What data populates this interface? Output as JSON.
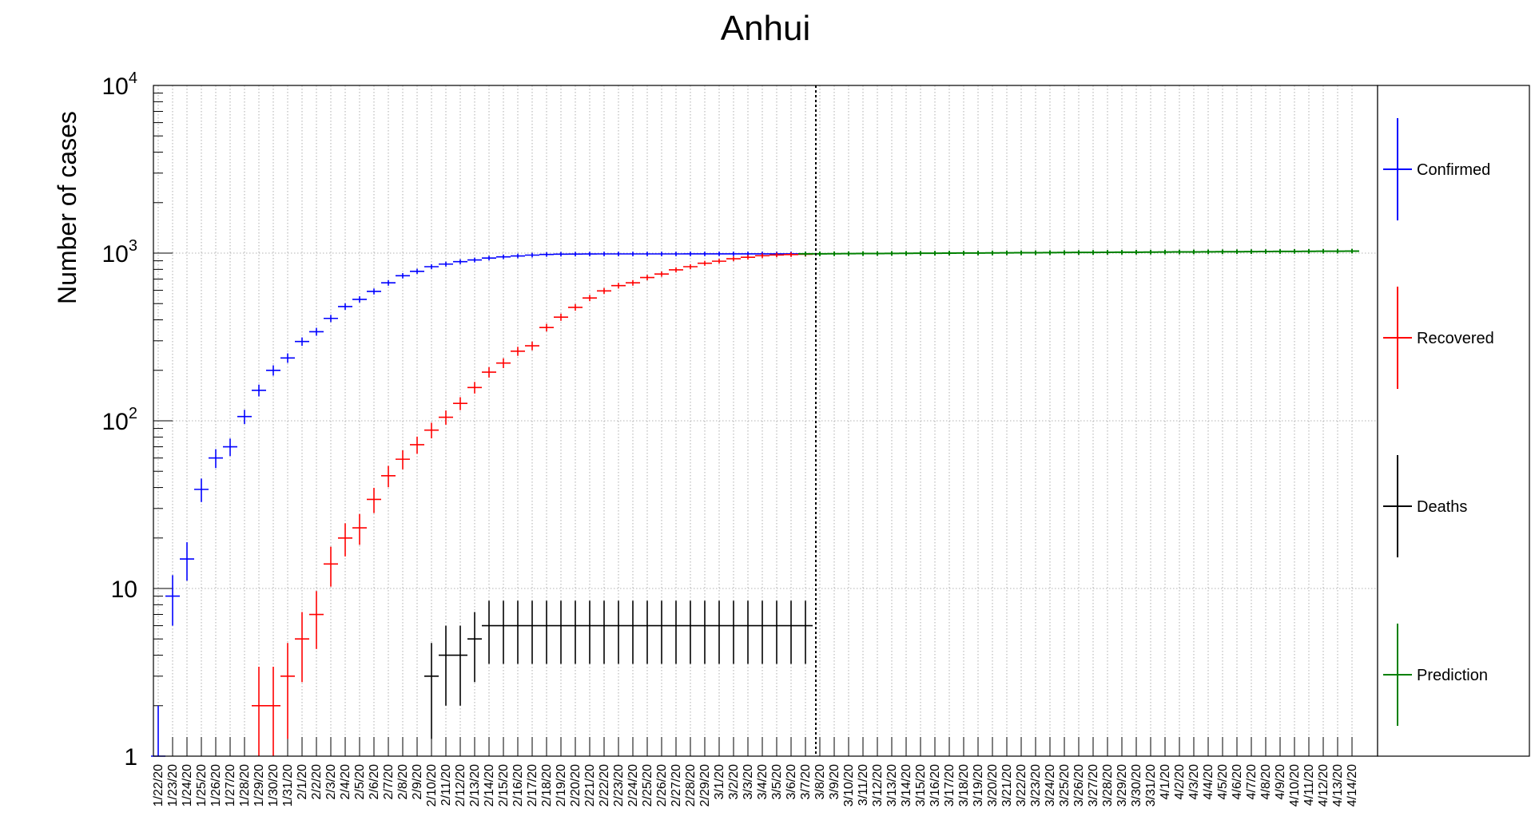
{
  "chart_data": {
    "type": "scatter",
    "title": "Anhui",
    "xlabel": "",
    "ylabel": "Number of cases",
    "yscale": "log",
    "ylim": [
      1,
      10000
    ],
    "y_tick_labels": [
      {
        "value": 1,
        "base": "1",
        "exp": ""
      },
      {
        "value": 10,
        "base": "10",
        "exp": ""
      },
      {
        "value": 100,
        "base": "10",
        "exp": "2"
      },
      {
        "value": 1000,
        "base": "10",
        "exp": "3"
      },
      {
        "value": 10000,
        "base": "10",
        "exp": "4"
      }
    ],
    "grid": true,
    "legend_position": "right",
    "split_date": "3/7/20",
    "categories": [
      "1/22/20",
      "1/23/20",
      "1/24/20",
      "1/25/20",
      "1/26/20",
      "1/27/20",
      "1/28/20",
      "1/29/20",
      "1/30/20",
      "1/31/20",
      "2/1/20",
      "2/2/20",
      "2/3/20",
      "2/4/20",
      "2/5/20",
      "2/6/20",
      "2/7/20",
      "2/8/20",
      "2/9/20",
      "2/10/20",
      "2/11/20",
      "2/12/20",
      "2/13/20",
      "2/14/20",
      "2/15/20",
      "2/16/20",
      "2/17/20",
      "2/18/20",
      "2/19/20",
      "2/20/20",
      "2/21/20",
      "2/22/20",
      "2/23/20",
      "2/24/20",
      "2/25/20",
      "2/26/20",
      "2/27/20",
      "2/28/20",
      "2/29/20",
      "3/1/20",
      "3/2/20",
      "3/3/20",
      "3/4/20",
      "3/5/20",
      "3/6/20",
      "3/7/20",
      "3/8/20",
      "3/9/20",
      "3/10/20",
      "3/11/20",
      "3/12/20",
      "3/13/20",
      "3/14/20",
      "3/15/20",
      "3/16/20",
      "3/17/20",
      "3/18/20",
      "3/19/20",
      "3/20/20",
      "3/21/20",
      "3/22/20",
      "3/23/20",
      "3/24/20",
      "3/25/20",
      "3/26/20",
      "3/27/20",
      "3/28/20",
      "3/29/20",
      "3/30/20",
      "3/31/20",
      "4/1/20",
      "4/2/20",
      "4/3/20",
      "4/4/20",
      "4/5/20",
      "4/6/20",
      "4/7/20",
      "4/8/20",
      "4/9/20",
      "4/10/20",
      "4/11/20",
      "4/12/20",
      "4/13/20",
      "4/14/20"
    ],
    "series": [
      {
        "name": "Confirmed",
        "color": "#0000ff",
        "start_index": 0,
        "values": [
          1,
          9,
          15,
          39,
          60,
          70,
          106,
          152,
          200,
          237,
          297,
          340,
          408,
          480,
          530,
          591,
          665,
          733,
          779,
          830,
          860,
          889,
          910,
          934,
          950,
          962,
          973,
          982,
          986,
          987,
          988,
          989,
          989,
          989,
          989,
          989,
          989,
          990,
          990,
          990,
          990,
          990,
          990,
          990,
          990,
          990
        ]
      },
      {
        "name": "Recovered",
        "color": "#ff0000",
        "start_index": 0,
        "values": [
          0,
          0,
          0,
          0,
          0,
          0,
          0,
          2,
          2,
          3,
          5,
          7,
          14,
          20,
          23,
          34,
          47,
          59,
          72,
          88,
          105,
          127,
          158,
          195,
          221,
          260,
          280,
          360,
          415,
          475,
          540,
          595,
          640,
          665,
          715,
          750,
          795,
          830,
          870,
          895,
          925,
          945,
          965,
          975,
          980,
          984
        ]
      },
      {
        "name": "Deaths",
        "color": "#000000",
        "start_index": 0,
        "values": [
          0,
          0,
          0,
          0,
          0,
          0,
          0,
          0,
          0,
          0,
          0,
          0,
          0,
          0,
          0,
          0,
          0,
          0,
          0,
          3,
          4,
          4,
          5,
          6,
          6,
          6,
          6,
          6,
          6,
          6,
          6,
          6,
          6,
          6,
          6,
          6,
          6,
          6,
          6,
          6,
          6,
          6,
          6,
          6,
          6,
          6
        ]
      },
      {
        "name": "Prediction",
        "color": "#008000",
        "start_index": 45,
        "values": [
          990,
          991,
          992,
          993,
          994,
          995,
          996,
          997,
          998,
          999,
          1000,
          1001,
          1002,
          1003,
          1004,
          1005,
          1006,
          1007,
          1008,
          1009,
          1010,
          1011,
          1012,
          1013,
          1014,
          1015,
          1016,
          1017,
          1018,
          1019,
          1020,
          1021,
          1022,
          1023,
          1024,
          1025,
          1026,
          1027,
          1028
        ]
      }
    ]
  }
}
